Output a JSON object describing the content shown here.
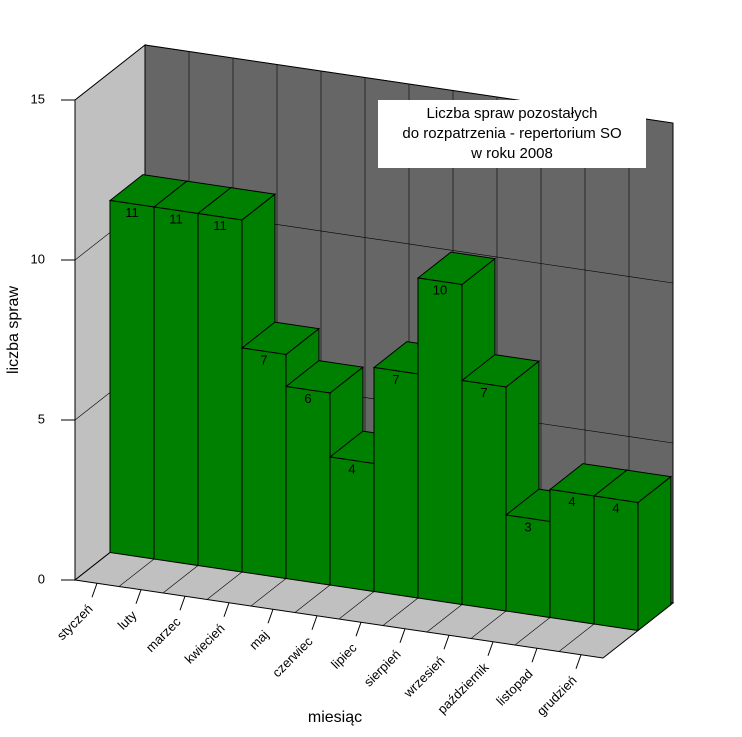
{
  "chart_data": {
    "type": "bar3d",
    "title": [
      "Liczba spraw pozostałych",
      "do rozpatrzenia - repertorium SO",
      "w roku 2008"
    ],
    "x_label": "miesiąc",
    "y_label": "liczba spraw",
    "categories": [
      "styczeń",
      "luty",
      "marzec",
      "kwiecień",
      "maj",
      "czerwiec",
      "lipiec",
      "sierpień",
      "wrzesień",
      "październik",
      "listopad",
      "grudzień"
    ],
    "values": [
      11,
      11,
      11,
      7,
      6,
      4,
      7,
      10,
      7,
      3,
      4,
      4
    ],
    "color": "#008000",
    "ylim": [
      0,
      15
    ],
    "yticks": [
      0,
      5,
      10,
      15
    ],
    "grid": true
  }
}
